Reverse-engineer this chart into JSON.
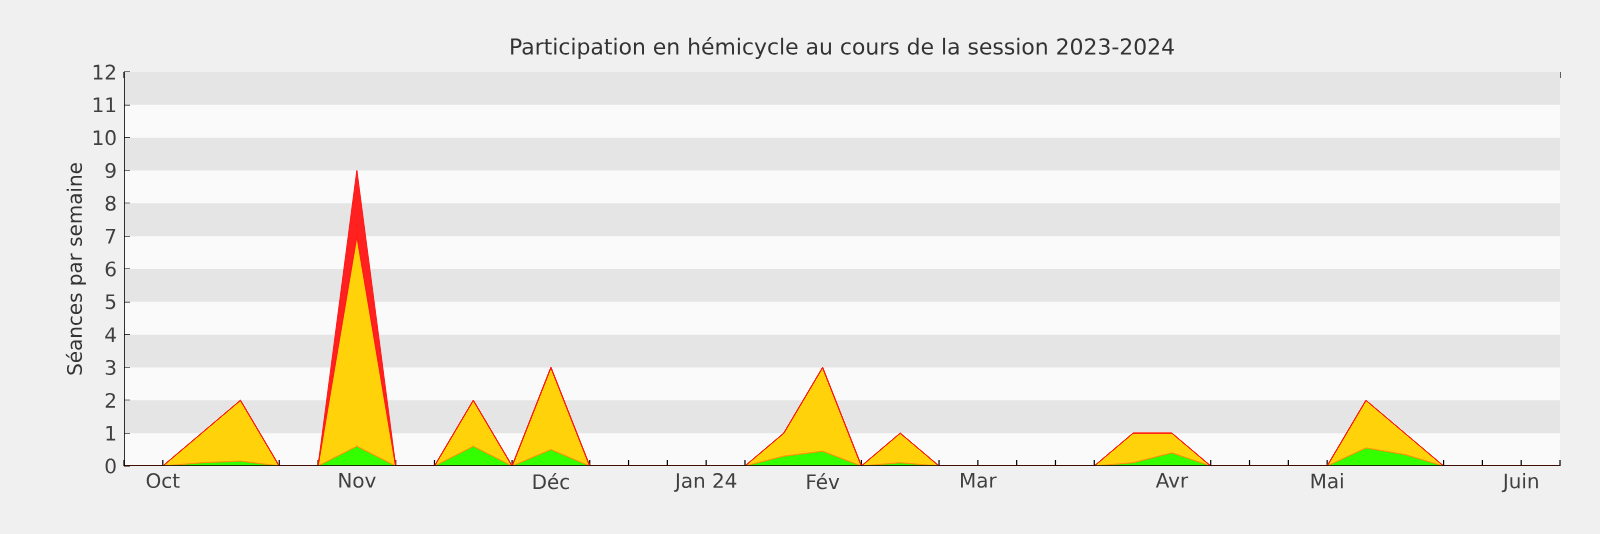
{
  "chart_data": {
    "type": "area",
    "stacked": true,
    "title": "Participation en hémicycle au cours de la session 2023-2024",
    "ylabel": "Séances par semaine",
    "categories": [
      null,
      "Oct",
      null,
      null,
      null,
      null,
      "Nov",
      null,
      null,
      null,
      null,
      "Déc",
      null,
      null,
      null,
      "Jan 24",
      null,
      null,
      "Fév",
      null,
      null,
      null,
      "Mar",
      null,
      null,
      null,
      null,
      "Avr",
      null,
      null,
      null,
      "Mai",
      null,
      null,
      null,
      null,
      "Juin",
      null
    ],
    "series": [
      {
        "color": "#33ff00",
        "values": [
          0,
          0,
          0.1,
          0.15,
          0,
          0,
          0.6,
          0,
          0,
          0.6,
          0,
          0.5,
          0,
          0,
          0,
          0,
          0,
          0.3,
          0.45,
          0,
          0.1,
          0,
          0,
          0,
          0,
          0,
          0.1,
          0.4,
          0,
          0,
          0,
          0,
          0.55,
          0.35,
          0,
          0,
          0,
          0
        ]
      },
      {
        "color": "#ffd20a",
        "values": [
          0,
          0,
          0.9,
          1.85,
          0,
          0,
          6.4,
          0,
          0,
          1.4,
          0,
          2.5,
          0,
          0,
          0,
          0,
          0,
          0.7,
          2.55,
          0,
          0.9,
          0,
          0,
          0,
          0,
          0,
          0.9,
          0.6,
          0,
          0,
          0,
          0,
          1.45,
          0.65,
          0,
          0,
          0,
          0
        ]
      },
      {
        "color": "#ff2020",
        "values": [
          0,
          0,
          0,
          0,
          0,
          0,
          2,
          0,
          0,
          0,
          0,
          0,
          0,
          0,
          0,
          0,
          0,
          0,
          0,
          0,
          0,
          0,
          0,
          0,
          0,
          0,
          0,
          0,
          0,
          0,
          0,
          0,
          0,
          0,
          0,
          0,
          0,
          0
        ]
      }
    ],
    "ylim": [
      0,
      12
    ],
    "yticks": [
      0,
      1,
      2,
      3,
      4,
      5,
      6,
      7,
      8,
      9,
      10,
      11,
      12
    ],
    "grid": false
  }
}
